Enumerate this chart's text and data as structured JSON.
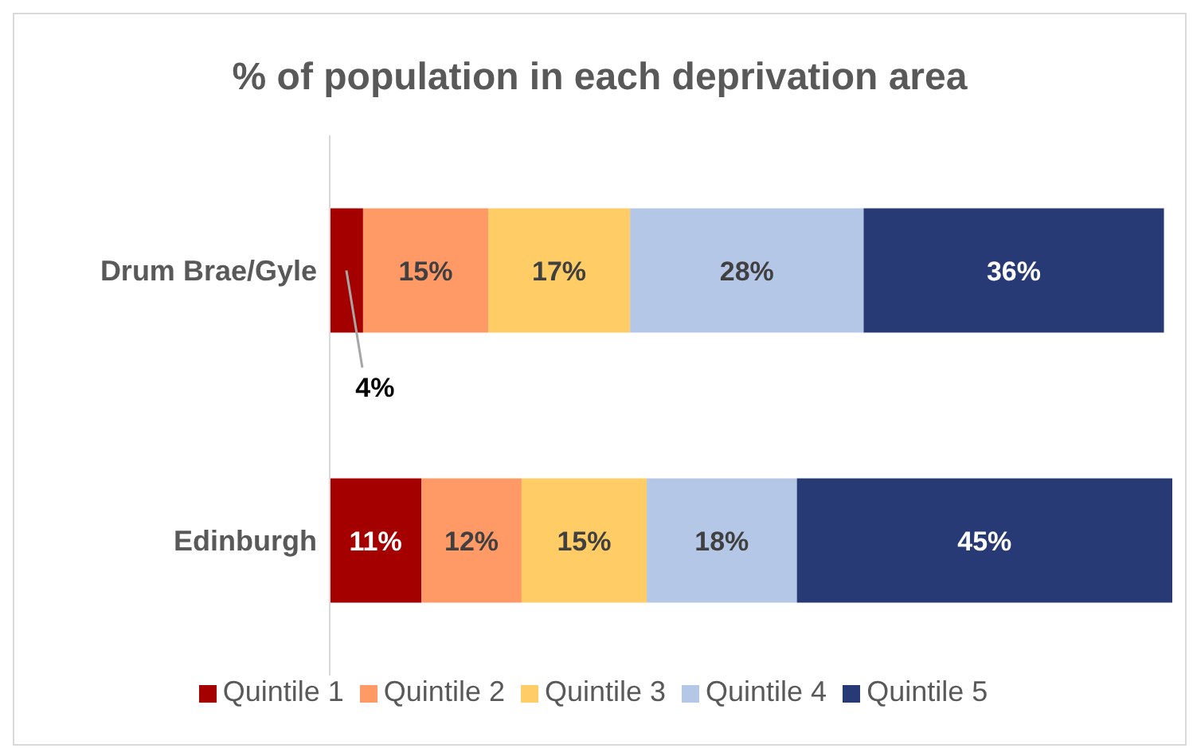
{
  "chart_data": {
    "type": "bar",
    "title": "% of population in each deprivation area",
    "orientation": "horizontal",
    "stacked": true,
    "categories": [
      "Drum Brae/Gyle",
      "Edinburgh"
    ],
    "series": [
      {
        "name": "Quintile 1",
        "color": "#a50000",
        "values": [
          4,
          11
        ],
        "value_labels": [
          "4%",
          "11%"
        ]
      },
      {
        "name": "Quintile 2",
        "color": "#ff9966",
        "values": [
          15,
          12
        ],
        "value_labels": [
          "15%",
          "12%"
        ]
      },
      {
        "name": "Quintile 3",
        "color": "#ffcc66",
        "values": [
          17,
          15
        ],
        "value_labels": [
          "17%",
          "15%"
        ]
      },
      {
        "name": "Quintile 4",
        "color": "#b4c7e7",
        "values": [
          28,
          18
        ],
        "value_labels": [
          "28%",
          "18%"
        ]
      },
      {
        "name": "Quintile 5",
        "color": "#283a75",
        "values": [
          36,
          45
        ],
        "value_labels": [
          "36%",
          "45%"
        ]
      }
    ],
    "legend": "bottom"
  }
}
